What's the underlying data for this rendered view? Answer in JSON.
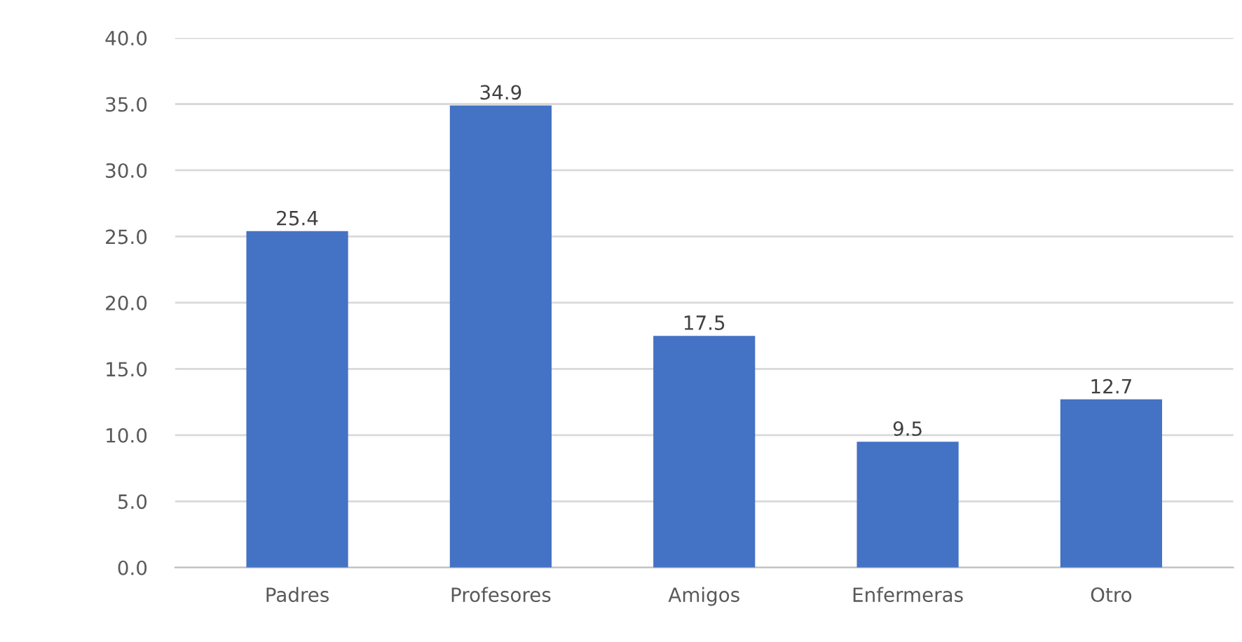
{
  "chart_data": {
    "type": "bar",
    "categories": [
      "Padres",
      "Profesores",
      "Amigos",
      "Enfermeras",
      "Otro"
    ],
    "values": [
      25.4,
      34.9,
      17.5,
      9.5,
      12.7
    ],
    "color": "#4472c4",
    "ylim": [
      0,
      40
    ],
    "yticks": [
      {
        "value": 0,
        "label": "0.0"
      },
      {
        "value": 5,
        "label": "5.0"
      },
      {
        "value": 10,
        "label": "10.0"
      },
      {
        "value": 15,
        "label": "15.0"
      },
      {
        "value": 20,
        "label": "20.0"
      },
      {
        "value": 25,
        "label": "25.0"
      },
      {
        "value": 30,
        "label": "30.0"
      },
      {
        "value": 35,
        "label": "35.0"
      },
      {
        "value": 40,
        "label": "40.0"
      }
    ],
    "grid": "y",
    "data_labels": true
  }
}
